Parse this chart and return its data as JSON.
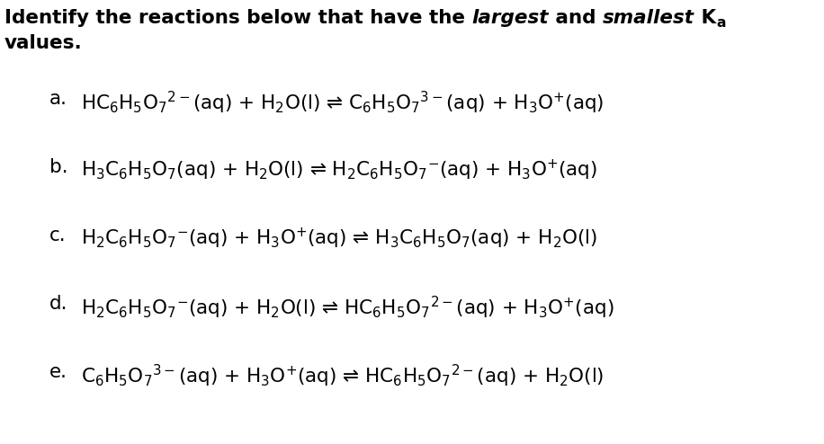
{
  "bg_color": "#ffffff",
  "text_color": "#000000",
  "font_size": 15.5,
  "reactions": [
    {
      "label": "a.",
      "text": "HC$_{6}$H$_{5}$O$_{7}$$^{2-}$(aq) + H$_{2}$O(l) ⇌ C$_{6}$H$_{5}$O$_{7}$$^{3-}$(aq) + H$_{3}$O$^{+}$(aq)"
    },
    {
      "label": "b.",
      "text": "H$_{3}$C$_{6}$H$_{5}$O$_{7}$(aq) + H$_{2}$O(l) ⇌ H$_{2}$C$_{6}$H$_{5}$O$_{7}$$^{-}$(aq) + H$_{3}$O$^{+}$(aq)"
    },
    {
      "label": "c.",
      "text": "H$_{2}$C$_{6}$H$_{5}$O$_{7}$$^{-}$(aq) + H$_{3}$O$^{+}$(aq) ⇌ H$_{3}$C$_{6}$H$_{5}$O$_{7}$(aq) + H$_{2}$O(l)"
    },
    {
      "label": "d.",
      "text": "H$_{2}$C$_{6}$H$_{5}$O$_{7}$$^{-}$(aq) + H$_{2}$O(l) ⇌ HC$_{6}$H$_{5}$O$_{7}$$^{2-}$(aq) + H$_{3}$O$^{+}$(aq)"
    },
    {
      "label": "e.",
      "text": "C$_{6}$H$_{5}$O$_{7}$$^{3-}$(aq) + H$_{3}$O$^{+}$(aq) ⇌ HC$_{6}$H$_{5}$O$_{7}$$^{2-}$(aq) + H$_{2}$O(l)"
    }
  ],
  "title_parts": [
    {
      "text": "Identify the reactions below that have the ",
      "style": "normal"
    },
    {
      "text": "largest",
      "style": "italic"
    },
    {
      "text": " and ",
      "style": "normal"
    },
    {
      "text": "smallest",
      "style": "italic"
    },
    {
      "text": " K",
      "style": "normal"
    },
    {
      "text": "a",
      "style": "subscript"
    }
  ],
  "title_line2": "values."
}
